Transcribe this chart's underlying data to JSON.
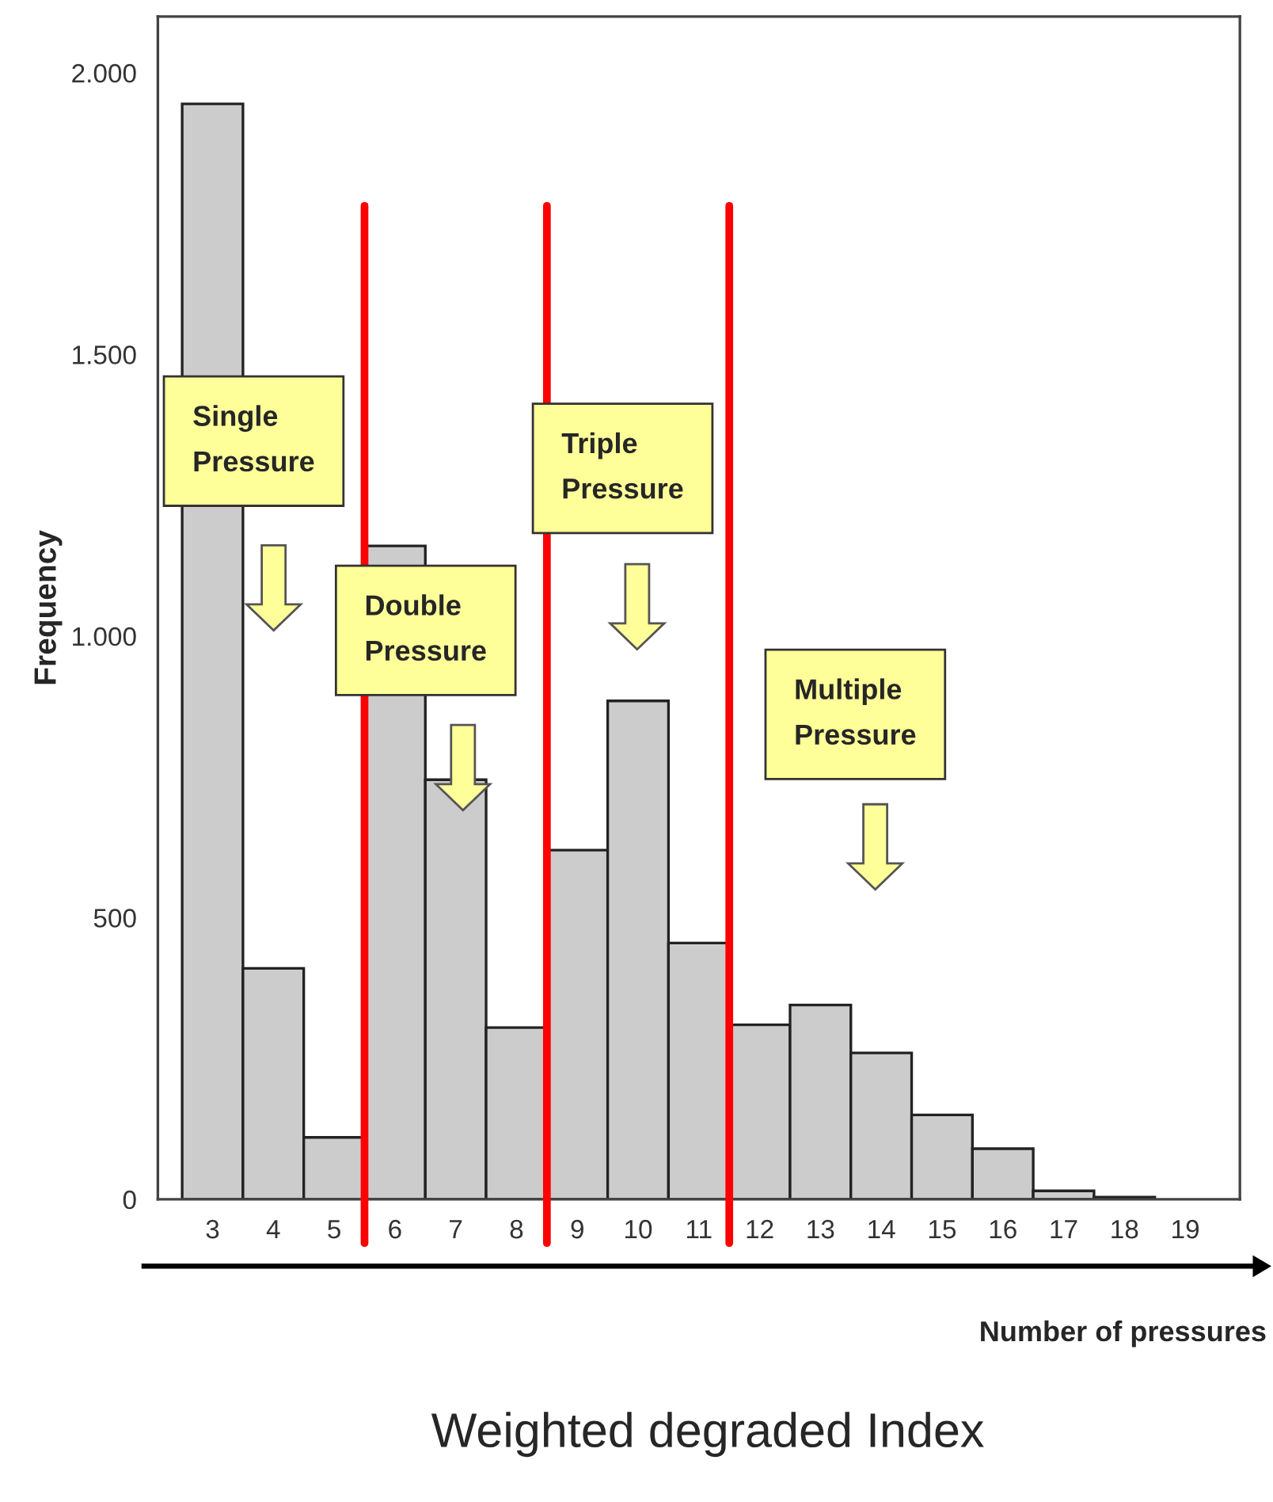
{
  "chart_data": {
    "type": "histogram",
    "bins": [
      2.5,
      3.5,
      4.5,
      5.5,
      6.5,
      7.5,
      8.5,
      9.5,
      10.5,
      11.5,
      12.5,
      13.5,
      14.5,
      15.5,
      16.5,
      17.5,
      18.5,
      19.5
    ],
    "values": [
      1945,
      410,
      110,
      1160,
      745,
      305,
      620,
      885,
      455,
      310,
      345,
      260,
      150,
      90,
      15,
      4,
      0
    ],
    "color": "#cccccc",
    "xlim": [
      2.1,
      19.9
    ],
    "xticks": [
      3,
      4,
      5,
      6,
      7,
      8,
      9,
      10,
      11,
      12,
      13,
      14,
      15,
      16,
      17,
      18,
      19
    ],
    "ylim": [
      0,
      2100
    ],
    "yticks": [
      {
        "value": 0,
        "label": "0"
      },
      {
        "value": 500,
        "label": "500"
      },
      {
        "value": 1000,
        "label": "1.000"
      },
      {
        "value": 1500,
        "label": "1.500"
      },
      {
        "value": 2000,
        "label": "2.000"
      }
    ],
    "ylabel": "Frequency",
    "xlabel": "Number of pressures",
    "ref_lines": [
      {
        "axis": "x",
        "value": 5.5,
        "color": "#ff0000"
      },
      {
        "axis": "x",
        "value": 8.5,
        "color": "#ff0000"
      },
      {
        "axis": "x",
        "value": 11.5,
        "color": "#ff0000"
      }
    ],
    "annotations": [
      "Single Pressure",
      "Double Pressure",
      "Triple Pressure",
      "Multiple Pressure",
      "Weighted degraded Index"
    ],
    "grid": false
  }
}
